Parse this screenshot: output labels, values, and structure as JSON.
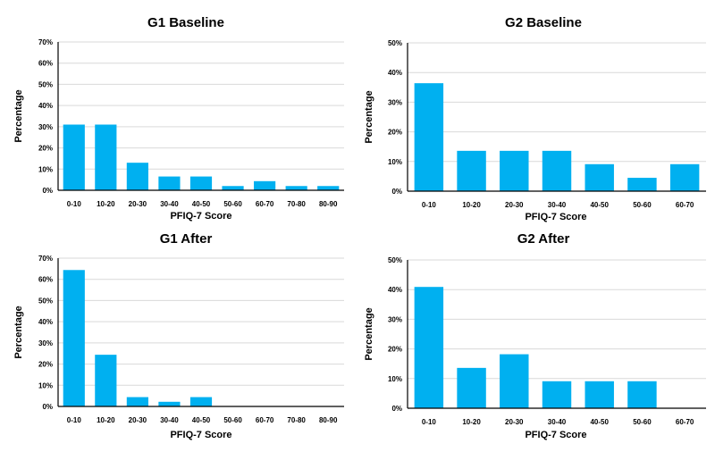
{
  "colors": {
    "bar": "#00b0f0",
    "grid": "#d9d9d9",
    "axis": "#000000"
  },
  "chart_data": [
    {
      "type": "bar",
      "title": "G1 Baseline",
      "xlabel": "PFIQ-7 Score",
      "ylabel": "Percentage",
      "categories": [
        "0-10",
        "10-20",
        "20-30",
        "30-40",
        "40-50",
        "50-60",
        "60-70",
        "70-80",
        "80-90"
      ],
      "values": [
        31,
        31,
        13,
        6.5,
        6.5,
        2,
        4.3,
        2,
        2
      ],
      "ylim": [
        0,
        70
      ],
      "yticks": [
        "0%",
        "10%",
        "20%",
        "30%",
        "40%",
        "50%",
        "60%",
        "70%"
      ],
      "grid": true
    },
    {
      "type": "bar",
      "title": "G2 Baseline",
      "xlabel": "PFIQ-7 Score",
      "ylabel": "Percentage",
      "categories": [
        "0-10",
        "10-20",
        "20-30",
        "30-40",
        "40-50",
        "50-60",
        "60-70"
      ],
      "values": [
        36.4,
        13.6,
        13.6,
        13.6,
        9.1,
        4.5,
        9.1
      ],
      "ylim": [
        0,
        50
      ],
      "yticks": [
        "0%",
        "10%",
        "20%",
        "30%",
        "40%",
        "50%"
      ],
      "grid": true
    },
    {
      "type": "bar",
      "title": "G1 After",
      "xlabel": "PFIQ-7 Score",
      "ylabel": "Percentage",
      "categories": [
        "0-10",
        "10-20",
        "20-30",
        "30-40",
        "40-50",
        "50-60",
        "60-70",
        "70-80",
        "80-90"
      ],
      "values": [
        64.4,
        24.4,
        4.4,
        2.2,
        4.4,
        0,
        0,
        0,
        0
      ],
      "ylim": [
        0,
        70
      ],
      "yticks": [
        "0%",
        "10%",
        "20%",
        "30%",
        "40%",
        "50%",
        "60%",
        "70%"
      ],
      "grid": true
    },
    {
      "type": "bar",
      "title": "G2 After",
      "xlabel": "PFIQ-7 Score",
      "ylabel": "Percentage",
      "categories": [
        "0-10",
        "10-20",
        "20-30",
        "30-40",
        "40-50",
        "50-60",
        "60-70"
      ],
      "values": [
        40.9,
        13.6,
        18.2,
        9.1,
        9.1,
        9.1,
        0
      ],
      "ylim": [
        0,
        50
      ],
      "yticks": [
        "0%",
        "10%",
        "20%",
        "30%",
        "40%",
        "50%"
      ],
      "grid": true
    }
  ]
}
